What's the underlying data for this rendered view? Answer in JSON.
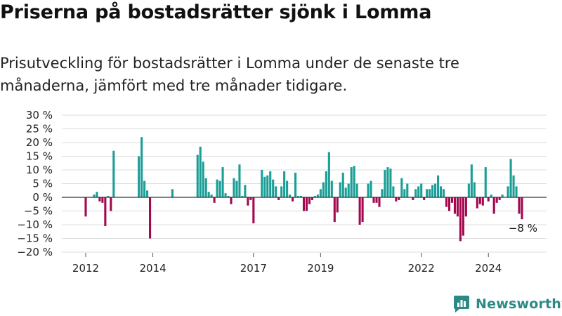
{
  "title": "Priserna på bostadsrätter sjönk i Lomma",
  "subtitle": "Prisutveckling för bostadsrätter i Lomma under de senaste tre månaderna, jämfört med tre månader tidigare.",
  "brand": {
    "name": "Newsworthy",
    "icon": "newsworthy-logo-icon"
  },
  "colors": {
    "positive": "#1a9e96",
    "negative": "#a3094f",
    "grid": "#dddddd",
    "zero_line": "#333333"
  },
  "chart_data": {
    "type": "bar",
    "title": "",
    "xlabel": "",
    "ylabel": "",
    "ylim": [
      -20,
      30
    ],
    "y_ticks": [
      {
        "value": 30,
        "label": "30 %"
      },
      {
        "value": 25,
        "label": "25 %"
      },
      {
        "value": 20,
        "label": "20 %"
      },
      {
        "value": 15,
        "label": "15 %"
      },
      {
        "value": 10,
        "label": "10 %"
      },
      {
        "value": 5,
        "label": "5 %"
      },
      {
        "value": 0,
        "label": "0 %"
      },
      {
        "value": -5,
        "label": "−5 %"
      },
      {
        "value": -10,
        "label": "−10 %"
      },
      {
        "value": -15,
        "label": "−15 %"
      },
      {
        "value": -20,
        "label": "−20 %"
      }
    ],
    "x_ticks": [
      {
        "value": "2012-01",
        "label": "2012"
      },
      {
        "value": "2014-01",
        "label": "2014"
      },
      {
        "value": "2017-01",
        "label": "2017"
      },
      {
        "value": "2019-01",
        "label": "2019"
      },
      {
        "value": "2022-01",
        "label": "2022"
      },
      {
        "value": "2024-01",
        "label": "2024"
      }
    ],
    "grid": true,
    "last_value_label": "−8 %",
    "series": [
      {
        "values": [
          [
            "2012-01",
            -7
          ],
          [
            "2012-04",
            1
          ],
          [
            "2012-05",
            2
          ],
          [
            "2012-06",
            -1.5
          ],
          [
            "2012-07",
            -2
          ],
          [
            "2012-08",
            -10.5
          ],
          [
            "2012-09",
            0.5
          ],
          [
            "2012-10",
            -5
          ],
          [
            "2012-11",
            17
          ],
          [
            "2013-08",
            15
          ],
          [
            "2013-09",
            22
          ],
          [
            "2013-10",
            6
          ],
          [
            "2013-11",
            2.5
          ],
          [
            "2013-12",
            -15
          ],
          [
            "2014-08",
            3
          ],
          [
            "2015-05",
            15.5
          ],
          [
            "2015-06",
            18.5
          ],
          [
            "2015-07",
            13
          ],
          [
            "2015-08",
            7
          ],
          [
            "2015-09",
            2
          ],
          [
            "2015-10",
            1
          ],
          [
            "2015-11",
            -2
          ],
          [
            "2015-12",
            6.5
          ],
          [
            "2016-01",
            6
          ],
          [
            "2016-02",
            11
          ],
          [
            "2016-03",
            1.5
          ],
          [
            "2016-04",
            0.5
          ],
          [
            "2016-05",
            -2.5
          ],
          [
            "2016-06",
            7
          ],
          [
            "2016-07",
            6
          ],
          [
            "2016-08",
            12
          ],
          [
            "2016-09",
            0.5
          ],
          [
            "2016-10",
            4.5
          ],
          [
            "2016-11",
            -3
          ],
          [
            "2016-12",
            -1
          ],
          [
            "2017-01",
            -9.5
          ],
          [
            "2017-04",
            10
          ],
          [
            "2017-05",
            7.5
          ],
          [
            "2017-06",
            8
          ],
          [
            "2017-07",
            9.5
          ],
          [
            "2017-08",
            6.5
          ],
          [
            "2017-09",
            4
          ],
          [
            "2017-10",
            -1
          ],
          [
            "2017-11",
            4
          ],
          [
            "2017-12",
            9.5
          ],
          [
            "2018-01",
            6
          ],
          [
            "2018-02",
            1
          ],
          [
            "2018-03",
            -1.5
          ],
          [
            "2018-04",
            9
          ],
          [
            "2018-05",
            0.5
          ],
          [
            "2018-06",
            0.5
          ],
          [
            "2018-07",
            -5
          ],
          [
            "2018-08",
            -5
          ],
          [
            "2018-09",
            -2.5
          ],
          [
            "2018-10",
            -1
          ],
          [
            "2018-11",
            0.5
          ],
          [
            "2018-12",
            1
          ],
          [
            "2019-01",
            3
          ],
          [
            "2019-02",
            5.5
          ],
          [
            "2019-03",
            9.5
          ],
          [
            "2019-04",
            16.5
          ],
          [
            "2019-05",
            6
          ],
          [
            "2019-06",
            -9
          ],
          [
            "2019-07",
            -5.5
          ],
          [
            "2019-08",
            5.5
          ],
          [
            "2019-09",
            9
          ],
          [
            "2019-10",
            3.5
          ],
          [
            "2019-11",
            5
          ],
          [
            "2019-12",
            11
          ],
          [
            "2020-01",
            11.5
          ],
          [
            "2020-02",
            5
          ],
          [
            "2020-03",
            -10
          ],
          [
            "2020-04",
            -9
          ],
          [
            "2020-06",
            5
          ],
          [
            "2020-07",
            6
          ],
          [
            "2020-08",
            -2
          ],
          [
            "2020-09",
            -2
          ],
          [
            "2020-10",
            -3.5
          ],
          [
            "2020-11",
            3
          ],
          [
            "2020-12",
            10
          ],
          [
            "2021-01",
            11
          ],
          [
            "2021-02",
            10.5
          ],
          [
            "2021-03",
            4
          ],
          [
            "2021-04",
            -1.5
          ],
          [
            "2021-05",
            -1
          ],
          [
            "2021-06",
            7
          ],
          [
            "2021-07",
            3
          ],
          [
            "2021-08",
            5
          ],
          [
            "2021-10",
            -1
          ],
          [
            "2021-11",
            3
          ],
          [
            "2021-12",
            4
          ],
          [
            "2022-01",
            5
          ],
          [
            "2022-02",
            -1
          ],
          [
            "2022-03",
            3
          ],
          [
            "2022-04",
            3
          ],
          [
            "2022-05",
            4.5
          ],
          [
            "2022-06",
            5
          ],
          [
            "2022-07",
            8
          ],
          [
            "2022-08",
            4
          ],
          [
            "2022-09",
            3
          ],
          [
            "2022-10",
            -3.5
          ],
          [
            "2022-11",
            -5
          ],
          [
            "2022-12",
            -2
          ],
          [
            "2023-01",
            -6
          ],
          [
            "2023-02",
            -7
          ],
          [
            "2023-03",
            -16
          ],
          [
            "2023-04",
            -14
          ],
          [
            "2023-05",
            -7
          ],
          [
            "2023-06",
            5
          ],
          [
            "2023-07",
            12
          ],
          [
            "2023-08",
            5.5
          ],
          [
            "2023-09",
            -4
          ],
          [
            "2023-10",
            -2.5
          ],
          [
            "2023-11",
            -3
          ],
          [
            "2023-12",
            11
          ],
          [
            "2024-01",
            -1.5
          ],
          [
            "2024-02",
            1
          ],
          [
            "2024-03",
            -6
          ],
          [
            "2024-04",
            -2
          ],
          [
            "2024-05",
            -1
          ],
          [
            "2024-06",
            1
          ],
          [
            "2024-08",
            4
          ],
          [
            "2024-09",
            14
          ],
          [
            "2024-10",
            8
          ],
          [
            "2024-11",
            4
          ],
          [
            "2024-12",
            -6
          ],
          [
            "2025-01",
            -8
          ]
        ]
      }
    ]
  }
}
